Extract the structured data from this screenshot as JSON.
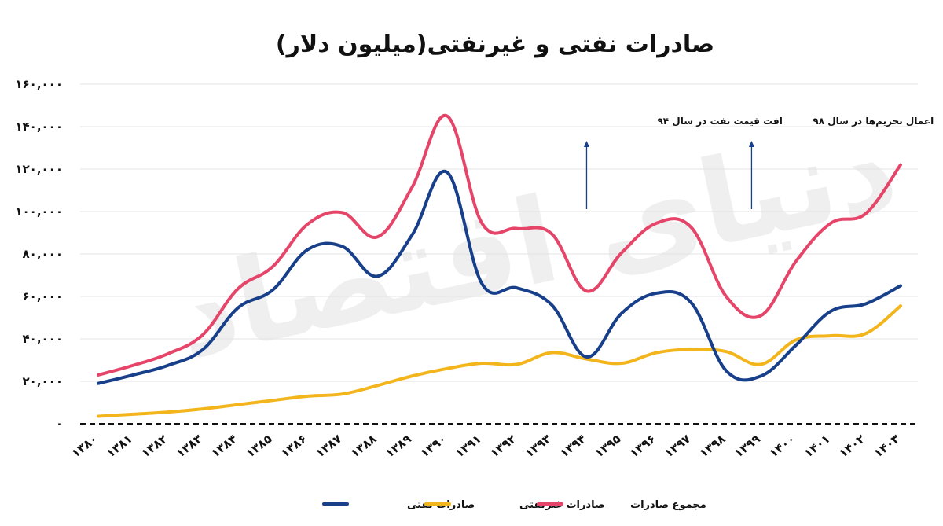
{
  "chart_data": {
    "type": "line",
    "title": "صادرات نفتی و غیرنفتی(میلیون دلار)",
    "categories": [
      "۱۳۸۰",
      "۱۳۸۱",
      "۱۳۸۲",
      "۱۳۸۳",
      "۱۳۸۴",
      "۱۳۸۵",
      "۱۳۸۶",
      "۱۳۸۷",
      "۱۳۸۸",
      "۱۳۸۹",
      "۱۳۹۰",
      "۱۳۹۱",
      "۱۳۹۲",
      "۱۳۹۳",
      "۱۳۹۴",
      "۱۳۹۵",
      "۱۳۹۶",
      "۱۳۹۷",
      "۱۳۹۸",
      "۱۳۹۹",
      "۱۴۰۰",
      "۱۴۰۱",
      "۱۴۰۲",
      "۱۴۰۳"
    ],
    "y_ticks": [
      0,
      20000,
      40000,
      60000,
      80000,
      100000,
      120000,
      140000,
      160000
    ],
    "y_tick_labels": [
      "۰",
      "۲۰,۰۰۰",
      "۴۰,۰۰۰",
      "۶۰,۰۰۰",
      "۸۰,۰۰۰",
      "۱۰۰,۰۰۰",
      "۱۲۰,۰۰۰",
      "۱۴۰,۰۰۰",
      "۱۶۰,۰۰۰"
    ],
    "ylim": [
      0,
      160000
    ],
    "grid": true,
    "legend_position": "bottom",
    "series": [
      {
        "name": "صادرات نفتی",
        "color": "#173f8a",
        "values": [
          19000,
          23000,
          27500,
          35000,
          54500,
          63000,
          82000,
          83500,
          69500,
          89000,
          118500,
          66000,
          64000,
          56000,
          31500,
          52000,
          61500,
          57000,
          25000,
          22500,
          37000,
          53000,
          56500,
          65000
        ]
      },
      {
        "name": "صادرات غیرنفتی",
        "color": "#f3b51c",
        "values": [
          3500,
          4500,
          5500,
          7000,
          9000,
          11000,
          13000,
          14000,
          18000,
          22500,
          26000,
          28500,
          28000,
          33500,
          30500,
          28500,
          33500,
          35000,
          34000,
          28000,
          39500,
          41500,
          42500,
          55500
        ]
      },
      {
        "name": "مجموع صادرات",
        "color": "#e6456a",
        "values": [
          23000,
          27500,
          33000,
          42000,
          63500,
          74000,
          94000,
          99500,
          88000,
          111500,
          145000,
          94500,
          92000,
          89500,
          62500,
          80500,
          94500,
          92500,
          60000,
          51000,
          76500,
          94500,
          99000,
          122000
        ]
      }
    ],
    "annotations": [
      {
        "text": "افت قیمت نفت در سال ۹۴",
        "category_index": 14
      },
      {
        "text": "اعمال تحریم‌ها در سال ۹۸",
        "category_index": 19
      }
    ]
  }
}
